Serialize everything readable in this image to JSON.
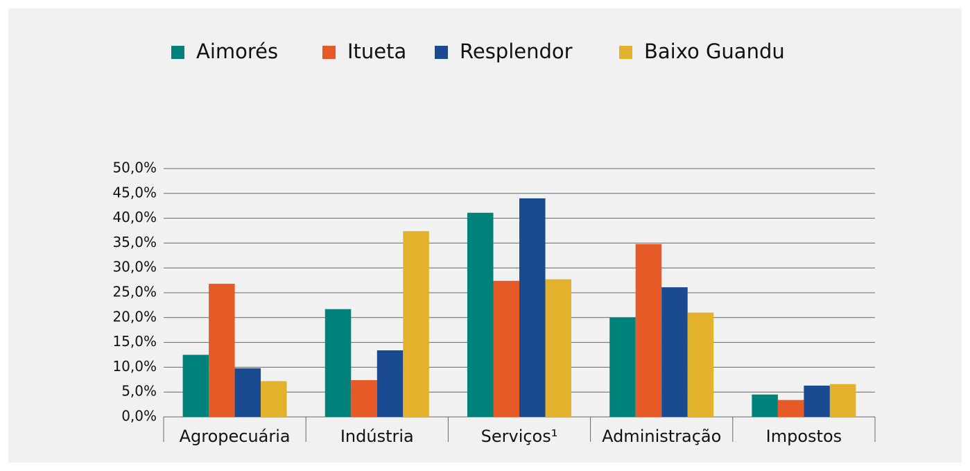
{
  "chart_data": {
    "type": "bar",
    "categories": [
      "Agropecuária",
      "Indústria",
      "Serviços¹",
      "Administração",
      "Impostos"
    ],
    "series": [
      {
        "name": "Aimorés",
        "color": "#00827a",
        "values": [
          12.5,
          21.7,
          41.1,
          20.0,
          4.5
        ]
      },
      {
        "name": "Itueta",
        "color": "#e55a27",
        "values": [
          26.8,
          7.4,
          27.4,
          34.8,
          3.4
        ]
      },
      {
        "name": "Resplendor",
        "color": "#1a4a8f",
        "values": [
          9.8,
          13.4,
          44.0,
          26.1,
          6.3
        ]
      },
      {
        "name": "Baixo Guandu",
        "color": "#e3b22d",
        "values": [
          7.2,
          37.4,
          27.7,
          21.0,
          6.6
        ]
      }
    ],
    "ylim": [
      0,
      50
    ],
    "yticks": [
      {
        "value": 0,
        "label": "0,0%"
      },
      {
        "value": 5,
        "label": "5,0%"
      },
      {
        "value": 10,
        "label": "10,0%"
      },
      {
        "value": 15,
        "label": "15,0%"
      },
      {
        "value": 20,
        "label": "20,0%"
      },
      {
        "value": 25,
        "label": "25,0%"
      },
      {
        "value": 30,
        "label": "30,0%"
      },
      {
        "value": 35,
        "label": "35,0%"
      },
      {
        "value": 40,
        "label": "40,0%"
      },
      {
        "value": 45,
        "label": "45,0%"
      },
      {
        "value": 50,
        "label": "50,0%"
      }
    ],
    "grid": true,
    "legend": "top"
  }
}
